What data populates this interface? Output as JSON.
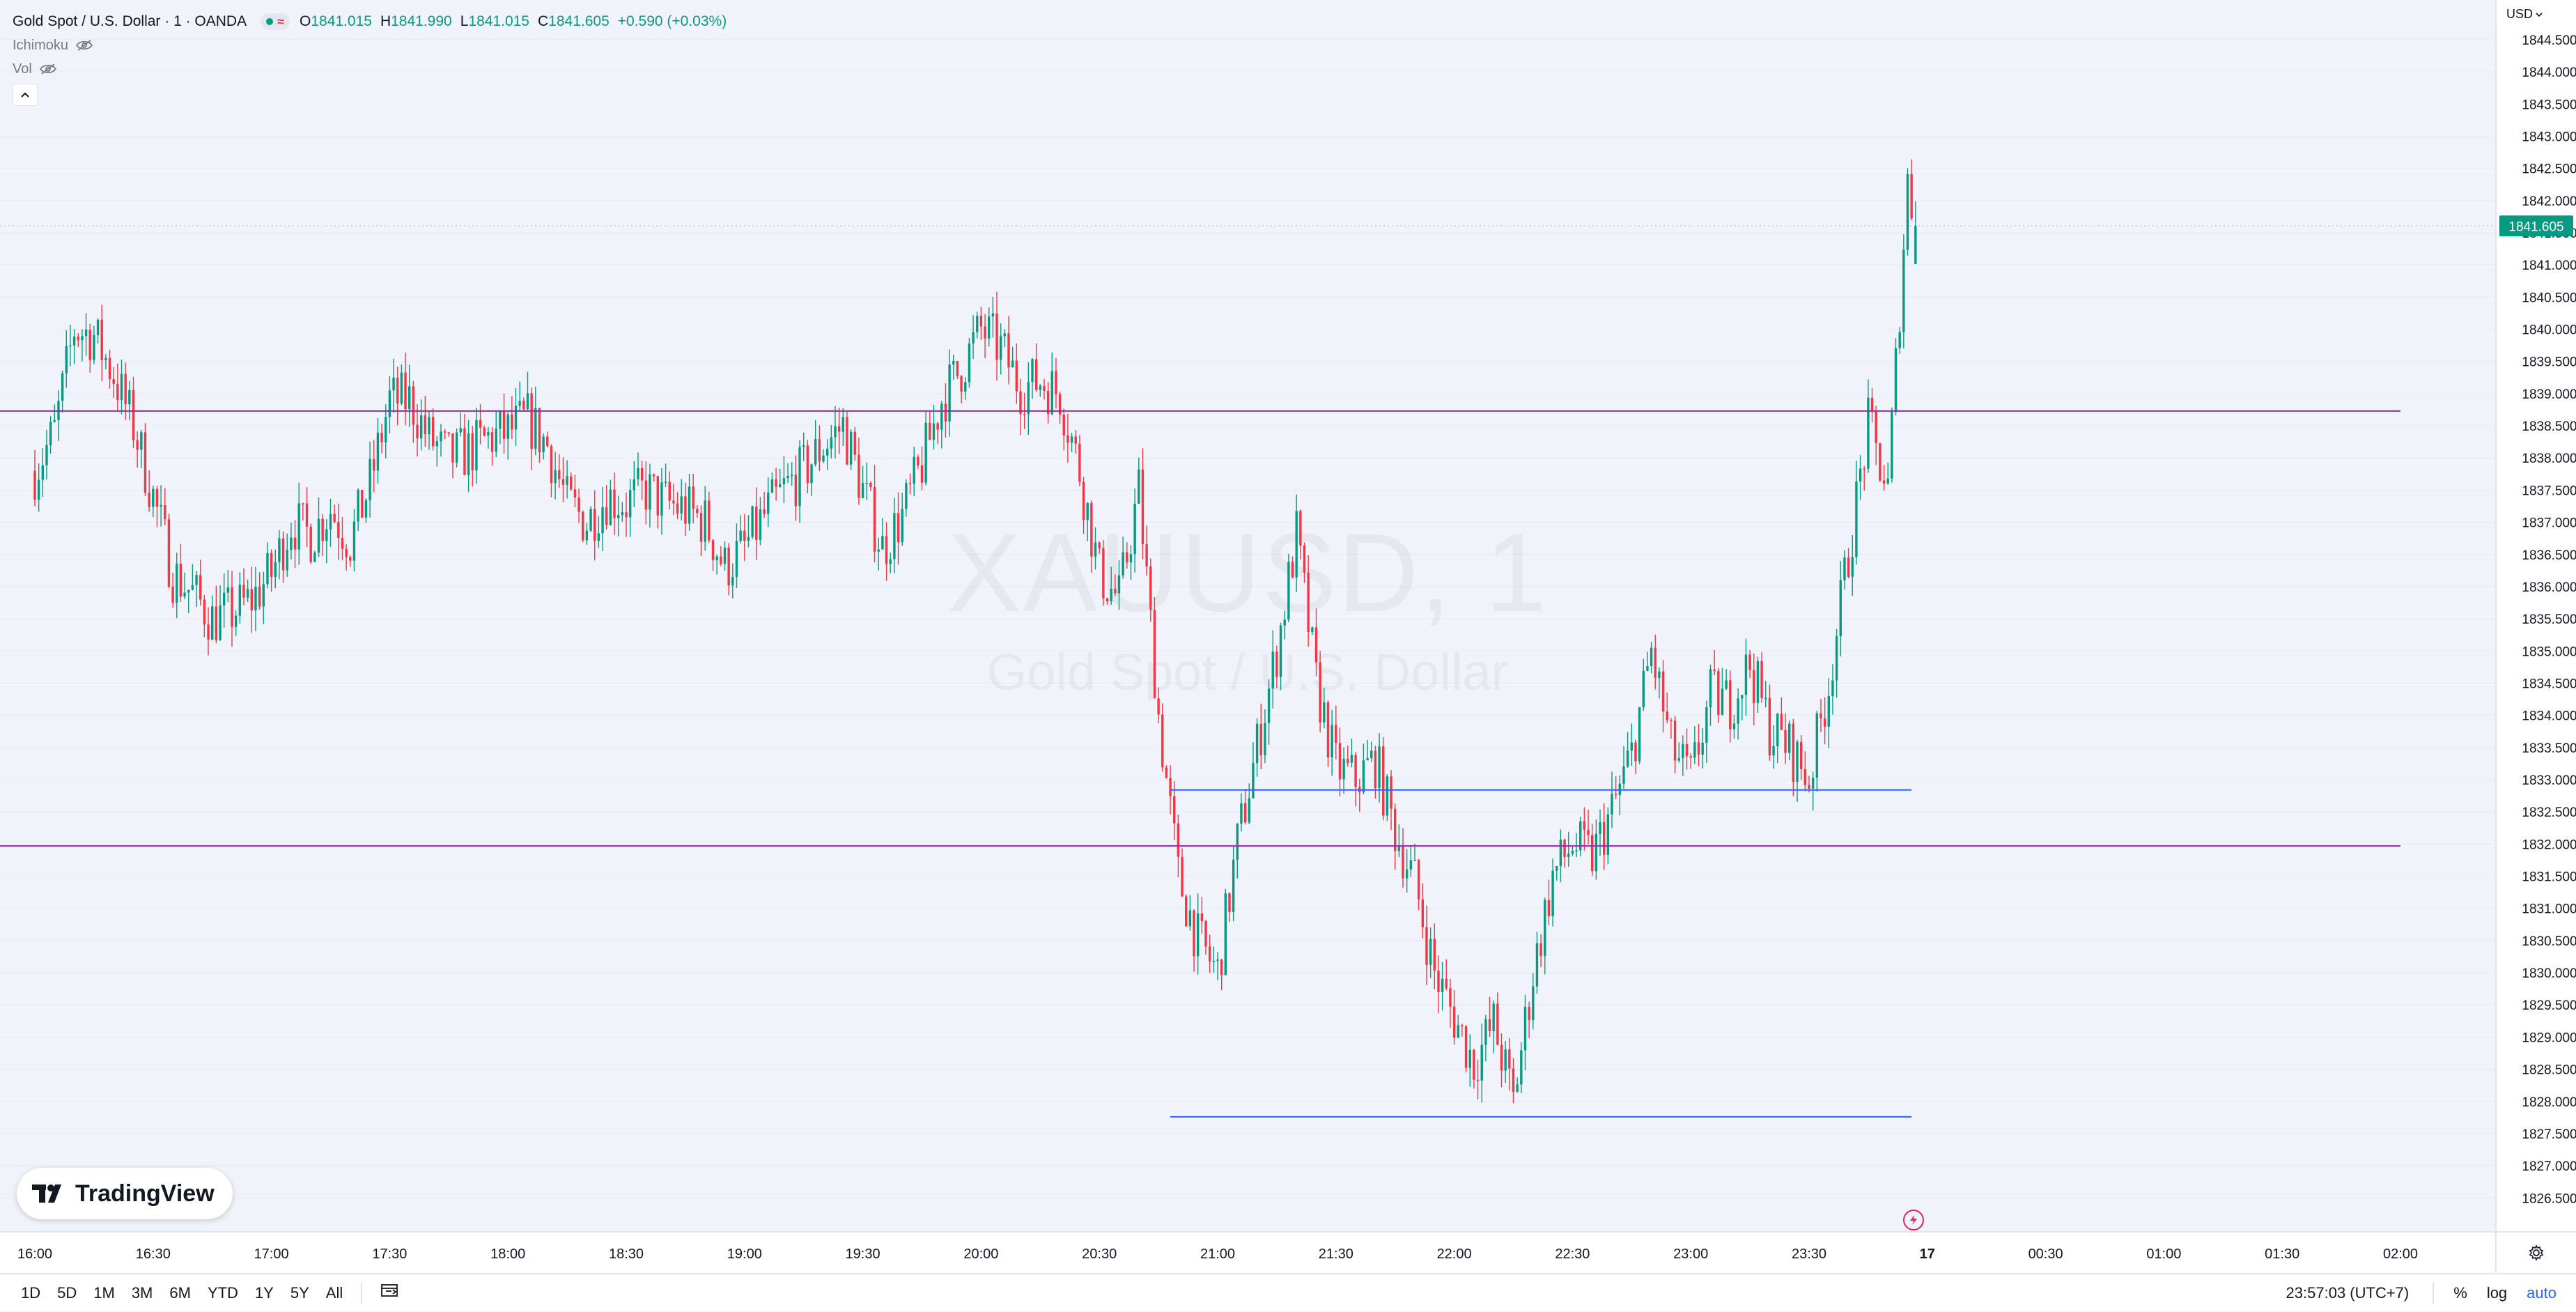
{
  "legend": {
    "title": "Gold Spot / U.S. Dollar · 1 · OANDA",
    "market_status_icon": "circle-dot-icon",
    "approx_symbol": "≈",
    "open_label": "O",
    "open": "1841.015",
    "high_label": "H",
    "high": "1841.990",
    "low_label": "L",
    "low": "1841.015",
    "close_label": "C",
    "close": "1841.605",
    "change": "+0.590 (+0.03%)",
    "indicators": [
      "Ichimoku",
      "Vol"
    ]
  },
  "watermark": {
    "symbol": "XAUUSD, 1",
    "description": "Gold Spot / U.S. Dollar"
  },
  "currency_menu": "USD",
  "logo": {
    "text": "TradingView"
  },
  "bottom_bar": {
    "timeframes": [
      "1D",
      "5D",
      "1M",
      "3M",
      "6M",
      "YTD",
      "1Y",
      "5Y",
      "All"
    ],
    "clock": "23:57:03 (UTC+7)",
    "percent_label": "%",
    "log_label": "log",
    "auto_label": "auto"
  },
  "colors": {
    "up": "#089981",
    "down": "#f23645",
    "hline_purple": "#9c27b0",
    "hline_blue": "#2962ff",
    "background": "#f0f3fa"
  },
  "chart_data": {
    "type": "candlestick",
    "symbol": "XAUUSD",
    "interval": "1",
    "currency": "USD",
    "price_ticks": [
      "1844.500",
      "1844.000",
      "1843.500",
      "1843.000",
      "1842.500",
      "1842.000",
      "1841.500",
      "1841.000",
      "1840.500",
      "1840.000",
      "1839.500",
      "1839.000",
      "1838.500",
      "1838.000",
      "1837.500",
      "1837.000",
      "1836.500",
      "1836.000",
      "1835.500",
      "1835.000",
      "1834.500",
      "1834.000",
      "1833.500",
      "1833.000",
      "1832.500",
      "1832.000",
      "1831.500",
      "1831.000",
      "1830.500",
      "1830.000",
      "1829.500",
      "1829.000",
      "1828.500",
      "1828.000",
      "1827.500",
      "1827.000",
      "1826.500"
    ],
    "y_range": [
      1826.2,
      1844.9
    ],
    "time_ticks": [
      "16:00",
      "16:30",
      "17:00",
      "17:30",
      "18:00",
      "18:30",
      "19:00",
      "19:30",
      "20:00",
      "20:30",
      "21:00",
      "21:30",
      "22:00",
      "22:30",
      "23:00",
      "23:30",
      "17",
      "00:30",
      "01:00",
      "01:30",
      "02:00"
    ],
    "last_price": "1841.605",
    "last_price_value": 1841.605,
    "last_candle": {
      "open": 1841.015,
      "high": 1841.99,
      "low": 1841.015,
      "close": 1841.605
    },
    "anchors": [
      [
        "16:00",
        1837.8
      ],
      [
        "16:05",
        1838.4
      ],
      [
        "16:10",
        1840.0
      ],
      [
        "16:15",
        1839.9
      ],
      [
        "16:20",
        1839.3
      ],
      [
        "16:25",
        1838.5
      ],
      [
        "16:30",
        1837.4
      ],
      [
        "16:35",
        1836.2
      ],
      [
        "16:40",
        1835.9
      ],
      [
        "16:45",
        1835.5
      ],
      [
        "16:50",
        1835.6
      ],
      [
        "16:55",
        1835.8
      ],
      [
        "17:00",
        1836.2
      ],
      [
        "17:05",
        1837.0
      ],
      [
        "17:10",
        1836.8
      ],
      [
        "17:15",
        1837.2
      ],
      [
        "17:20",
        1836.7
      ],
      [
        "17:25",
        1837.6
      ],
      [
        "17:30",
        1838.9
      ],
      [
        "17:35",
        1838.9
      ],
      [
        "17:40",
        1838.3
      ],
      [
        "17:45",
        1838.0
      ],
      [
        "17:50",
        1838.1
      ],
      [
        "17:55",
        1838.3
      ],
      [
        "18:00",
        1838.4
      ],
      [
        "18:05",
        1838.6
      ],
      [
        "18:10",
        1838.2
      ],
      [
        "18:15",
        1837.3
      ],
      [
        "18:20",
        1837.0
      ],
      [
        "18:25",
        1837.4
      ],
      [
        "18:30",
        1837.3
      ],
      [
        "18:35",
        1837.5
      ],
      [
        "18:40",
        1837.3
      ],
      [
        "18:45",
        1837.2
      ],
      [
        "18:50",
        1837.0
      ],
      [
        "18:55",
        1836.3
      ],
      [
        "19:00",
        1836.6
      ],
      [
        "19:05",
        1837.1
      ],
      [
        "19:10",
        1837.5
      ],
      [
        "19:15",
        1837.8
      ],
      [
        "19:20",
        1838.2
      ],
      [
        "19:25",
        1838.5
      ],
      [
        "19:30",
        1837.5
      ],
      [
        "19:35",
        1836.6
      ],
      [
        "19:40",
        1837.1
      ],
      [
        "19:45",
        1837.9
      ],
      [
        "19:50",
        1838.9
      ],
      [
        "19:55",
        1839.4
      ],
      [
        "20:00",
        1840.0
      ],
      [
        "20:05",
        1839.7
      ],
      [
        "20:10",
        1839.1
      ],
      [
        "20:15",
        1839.2
      ],
      [
        "20:20",
        1839.0
      ],
      [
        "20:25",
        1837.8
      ],
      [
        "20:30",
        1836.2
      ],
      [
        "20:35",
        1835.8
      ],
      [
        "20:40",
        1837.5
      ],
      [
        "20:45",
        1834.0
      ],
      [
        "20:50",
        1831.5
      ],
      [
        "20:55",
        1830.5
      ],
      [
        "21:00",
        1830.0
      ],
      [
        "21:05",
        1832.0
      ],
      [
        "21:10",
        1833.5
      ],
      [
        "21:15",
        1835.0
      ],
      [
        "21:20",
        1836.8
      ],
      [
        "21:25",
        1834.5
      ],
      [
        "21:30",
        1833.2
      ],
      [
        "21:35",
        1833.0
      ],
      [
        "21:40",
        1833.3
      ],
      [
        "21:45",
        1832.2
      ],
      [
        "21:50",
        1831.4
      ],
      [
        "21:55",
        1830.0
      ],
      [
        "22:00",
        1829.3
      ],
      [
        "22:05",
        1828.6
      ],
      [
        "22:10",
        1829.2
      ],
      [
        "22:15",
        1828.0
      ],
      [
        "22:20",
        1830.0
      ],
      [
        "22:25",
        1831.5
      ],
      [
        "22:30",
        1832.0
      ],
      [
        "22:35",
        1831.8
      ],
      [
        "22:40",
        1832.5
      ],
      [
        "22:45",
        1833.4
      ],
      [
        "22:50",
        1835.0
      ],
      [
        "22:55",
        1833.5
      ],
      [
        "23:00",
        1833.0
      ],
      [
        "23:05",
        1834.3
      ],
      [
        "23:10",
        1834.2
      ],
      [
        "23:15",
        1834.8
      ],
      [
        "23:20",
        1833.8
      ],
      [
        "23:25",
        1833.5
      ],
      [
        "23:30",
        1833.0
      ],
      [
        "23:35",
        1834.5
      ],
      [
        "23:40",
        1836.5
      ],
      [
        "23:45",
        1838.5
      ],
      [
        "23:50",
        1837.5
      ],
      [
        "23:55",
        1842.3
      ],
      [
        "23:57",
        1841.605
      ]
    ],
    "horizontal_lines": [
      {
        "price": 1838.73,
        "color": "#9c27b0",
        "from": "15:55",
        "to": "02:00"
      },
      {
        "price": 1831.97,
        "color": "#9c27b0",
        "from": "15:55",
        "to": "02:00"
      },
      {
        "price": 1832.84,
        "color": "#2962ff",
        "from": "20:48",
        "to": "23:56"
      },
      {
        "price": 1827.76,
        "color": "#2962ff",
        "from": "20:48",
        "to": "23:56"
      }
    ]
  }
}
